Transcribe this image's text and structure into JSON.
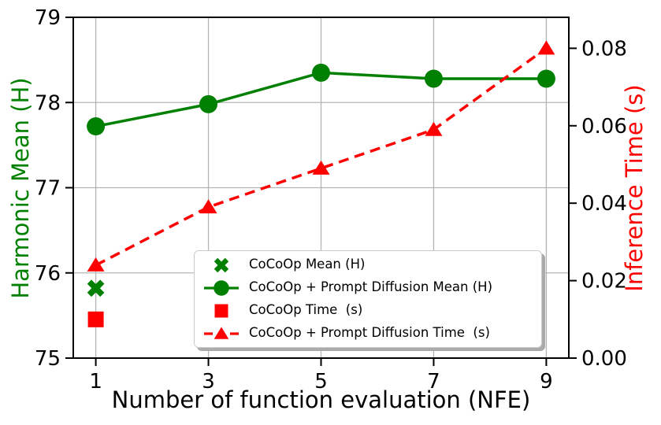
{
  "chart_data": {
    "type": "line",
    "title": "",
    "xlabel": "Number of function evaluation (NFE)",
    "ylabel_left": "Harmonic Mean (H)",
    "ylabel_right": "Inference Time (s)",
    "xlim": [
      0.6,
      9.4
    ],
    "ylim_left": [
      75,
      79
    ],
    "ylim_right": [
      0,
      0.088
    ],
    "x_ticks": [
      1,
      3,
      5,
      7,
      9
    ],
    "x_tick_labels": [
      "1",
      "3",
      "5",
      "7",
      "9"
    ],
    "yticks_left_values": [
      75,
      76,
      77,
      78,
      79
    ],
    "yticks_left_labels": [
      "75",
      "76",
      "77",
      "78",
      "79"
    ],
    "yticks_right_values": [
      0.0,
      0.02,
      0.04,
      0.06,
      0.08
    ],
    "yticks_right_labels": [
      "0.00",
      "0.02",
      "0.04",
      "0.06",
      "0.08"
    ],
    "grid": true,
    "legend_position": "inside lower-center",
    "colors": {
      "mean_green": "#008000",
      "time_red": "#ff0000",
      "grid": "#b4b4b4",
      "axis": "#000000",
      "legend_border": "#cccccc",
      "legend_shadow": "#ababab"
    },
    "series": [
      {
        "name": "CoCoOp Mean (H)",
        "axis": "left",
        "type": "scatter",
        "marker": "X",
        "linestyle": "none",
        "color": "#008000",
        "x": [
          1
        ],
        "y": [
          75.82
        ]
      },
      {
        "name": "CoCoOp + Prompt Diffusion Mean (H)",
        "axis": "left",
        "type": "line",
        "marker": "circle",
        "linestyle": "solid",
        "color": "#008000",
        "x": [
          1,
          3,
          5,
          7,
          9
        ],
        "y": [
          77.72,
          77.98,
          78.35,
          78.28,
          78.28
        ]
      },
      {
        "name": "CoCoOp Time  (s)",
        "axis": "right",
        "type": "scatter",
        "marker": "square",
        "linestyle": "none",
        "color": "#ff0000",
        "x": [
          1
        ],
        "y": [
          0.01
        ]
      },
      {
        "name": "CoCoOp + Prompt Diffusion Time  (s)",
        "axis": "right",
        "type": "line",
        "marker": "triangle",
        "linestyle": "dashed",
        "color": "#ff0000",
        "x": [
          1,
          3,
          5,
          7,
          9
        ],
        "y": [
          0.024,
          0.039,
          0.049,
          0.059,
          0.08
        ]
      }
    ]
  }
}
